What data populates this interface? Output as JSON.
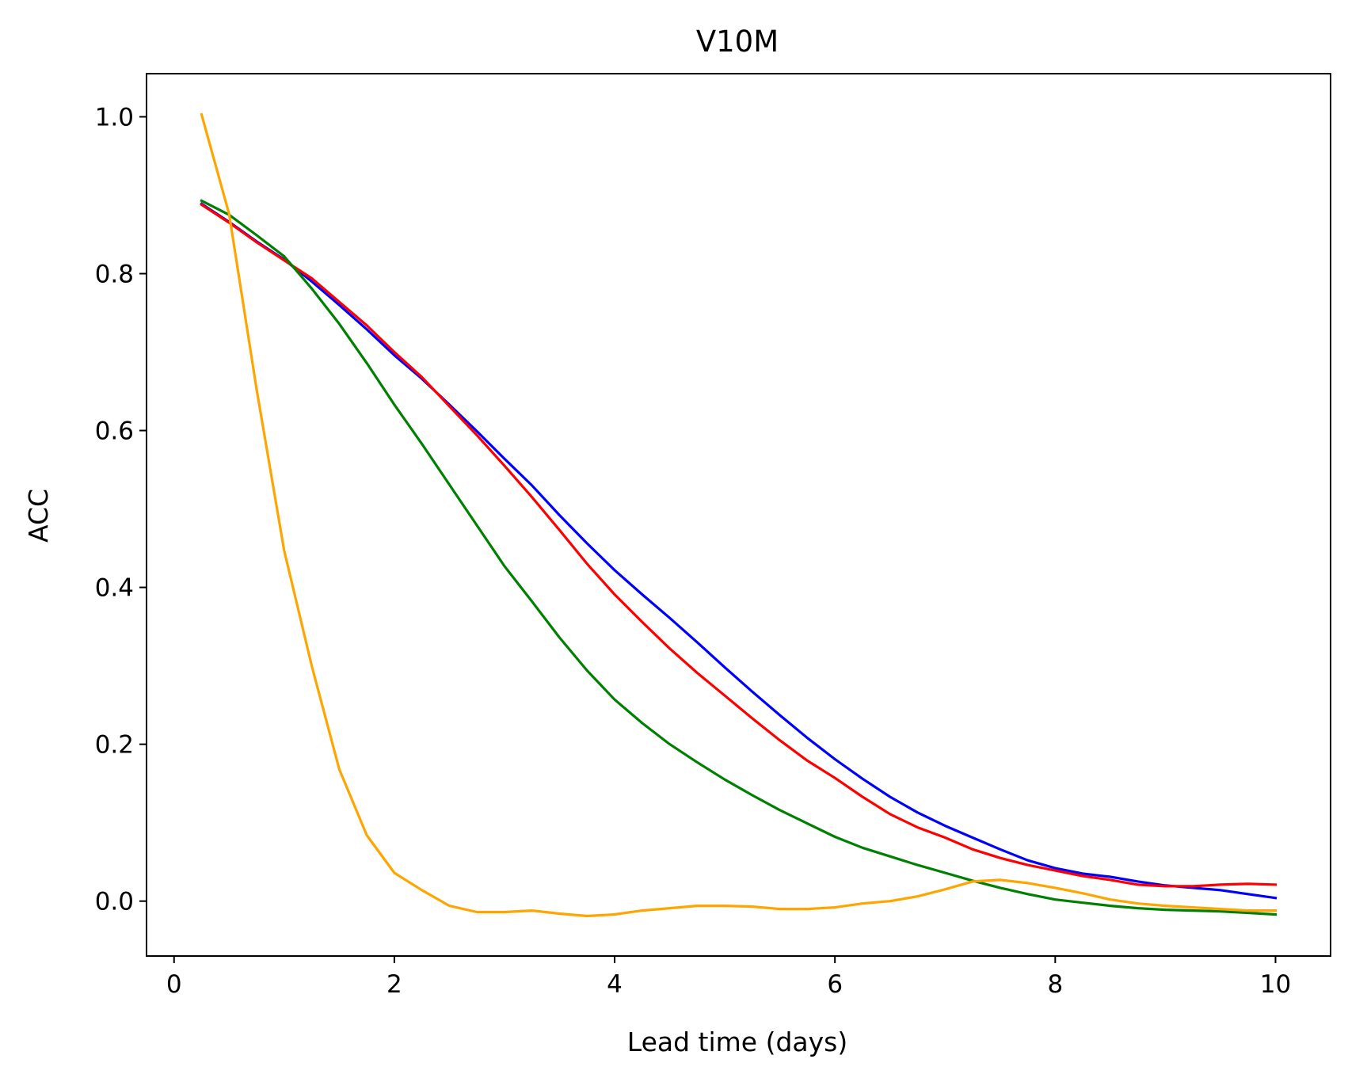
{
  "chart_data": {
    "type": "line",
    "title": "V10M",
    "xlabel": "Lead time (days)",
    "ylabel": "ACC",
    "xlim": [
      -0.25,
      10.5
    ],
    "ylim": [
      -0.07,
      1.055
    ],
    "xticks": [
      0,
      2,
      4,
      6,
      8,
      10
    ],
    "xtick_labels": [
      "0",
      "2",
      "4",
      "6",
      "8",
      "10"
    ],
    "yticks": [
      0.0,
      0.2,
      0.4,
      0.6,
      0.8,
      1.0
    ],
    "ytick_labels": [
      "0.0",
      "0.2",
      "0.4",
      "0.6",
      "0.8",
      "1.0"
    ],
    "grid": false,
    "x": [
      0.25,
      0.5,
      0.75,
      1.0,
      1.25,
      1.5,
      1.75,
      2.0,
      2.25,
      2.5,
      2.75,
      3.0,
      3.25,
      3.5,
      3.75,
      4.0,
      4.25,
      4.5,
      4.75,
      5.0,
      5.25,
      5.5,
      5.75,
      6.0,
      6.25,
      6.5,
      6.75,
      7.0,
      7.25,
      7.5,
      7.75,
      8.0,
      8.25,
      8.5,
      8.75,
      9.0,
      9.25,
      9.5,
      9.75,
      10.0
    ],
    "series": [
      {
        "color": "#0000ff",
        "values": [
          0.889,
          0.866,
          0.841,
          0.818,
          0.79,
          0.76,
          0.729,
          0.696,
          0.666,
          0.633,
          0.599,
          0.564,
          0.53,
          0.492,
          0.456,
          0.422,
          0.391,
          0.361,
          0.33,
          0.298,
          0.267,
          0.237,
          0.208,
          0.181,
          0.156,
          0.133,
          0.113,
          0.096,
          0.081,
          0.066,
          0.052,
          0.042,
          0.035,
          0.031,
          0.025,
          0.02,
          0.017,
          0.014,
          0.009,
          0.004
        ]
      },
      {
        "color": "#ff0000",
        "values": [
          0.888,
          0.865,
          0.84,
          0.817,
          0.794,
          0.764,
          0.734,
          0.7,
          0.668,
          0.631,
          0.594,
          0.555,
          0.515,
          0.473,
          0.43,
          0.391,
          0.356,
          0.322,
          0.291,
          0.262,
          0.233,
          0.205,
          0.179,
          0.157,
          0.133,
          0.111,
          0.094,
          0.081,
          0.066,
          0.055,
          0.046,
          0.039,
          0.032,
          0.027,
          0.021,
          0.019,
          0.019,
          0.021,
          0.022,
          0.021
        ]
      },
      {
        "color": "#008000",
        "values": [
          0.893,
          0.875,
          0.849,
          0.822,
          0.781,
          0.736,
          0.686,
          0.633,
          0.583,
          0.531,
          0.479,
          0.427,
          0.382,
          0.336,
          0.294,
          0.257,
          0.227,
          0.2,
          0.177,
          0.155,
          0.135,
          0.116,
          0.099,
          0.082,
          0.068,
          0.057,
          0.046,
          0.036,
          0.026,
          0.017,
          0.009,
          0.002,
          -0.002,
          -0.006,
          -0.009,
          -0.011,
          -0.012,
          -0.013,
          -0.015,
          -0.017
        ]
      },
      {
        "color": "#ffa500",
        "values": [
          1.003,
          0.876,
          0.652,
          0.447,
          0.3,
          0.168,
          0.084,
          0.036,
          0.014,
          -0.006,
          -0.014,
          -0.014,
          -0.012,
          -0.016,
          -0.019,
          -0.017,
          -0.012,
          -0.009,
          -0.006,
          -0.006,
          -0.007,
          -0.01,
          -0.01,
          -0.008,
          -0.003,
          0.0,
          0.006,
          0.015,
          0.025,
          0.027,
          0.023,
          0.017,
          0.01,
          0.002,
          -0.003,
          -0.006,
          -0.008,
          -0.01,
          -0.012,
          -0.012
        ]
      }
    ]
  }
}
